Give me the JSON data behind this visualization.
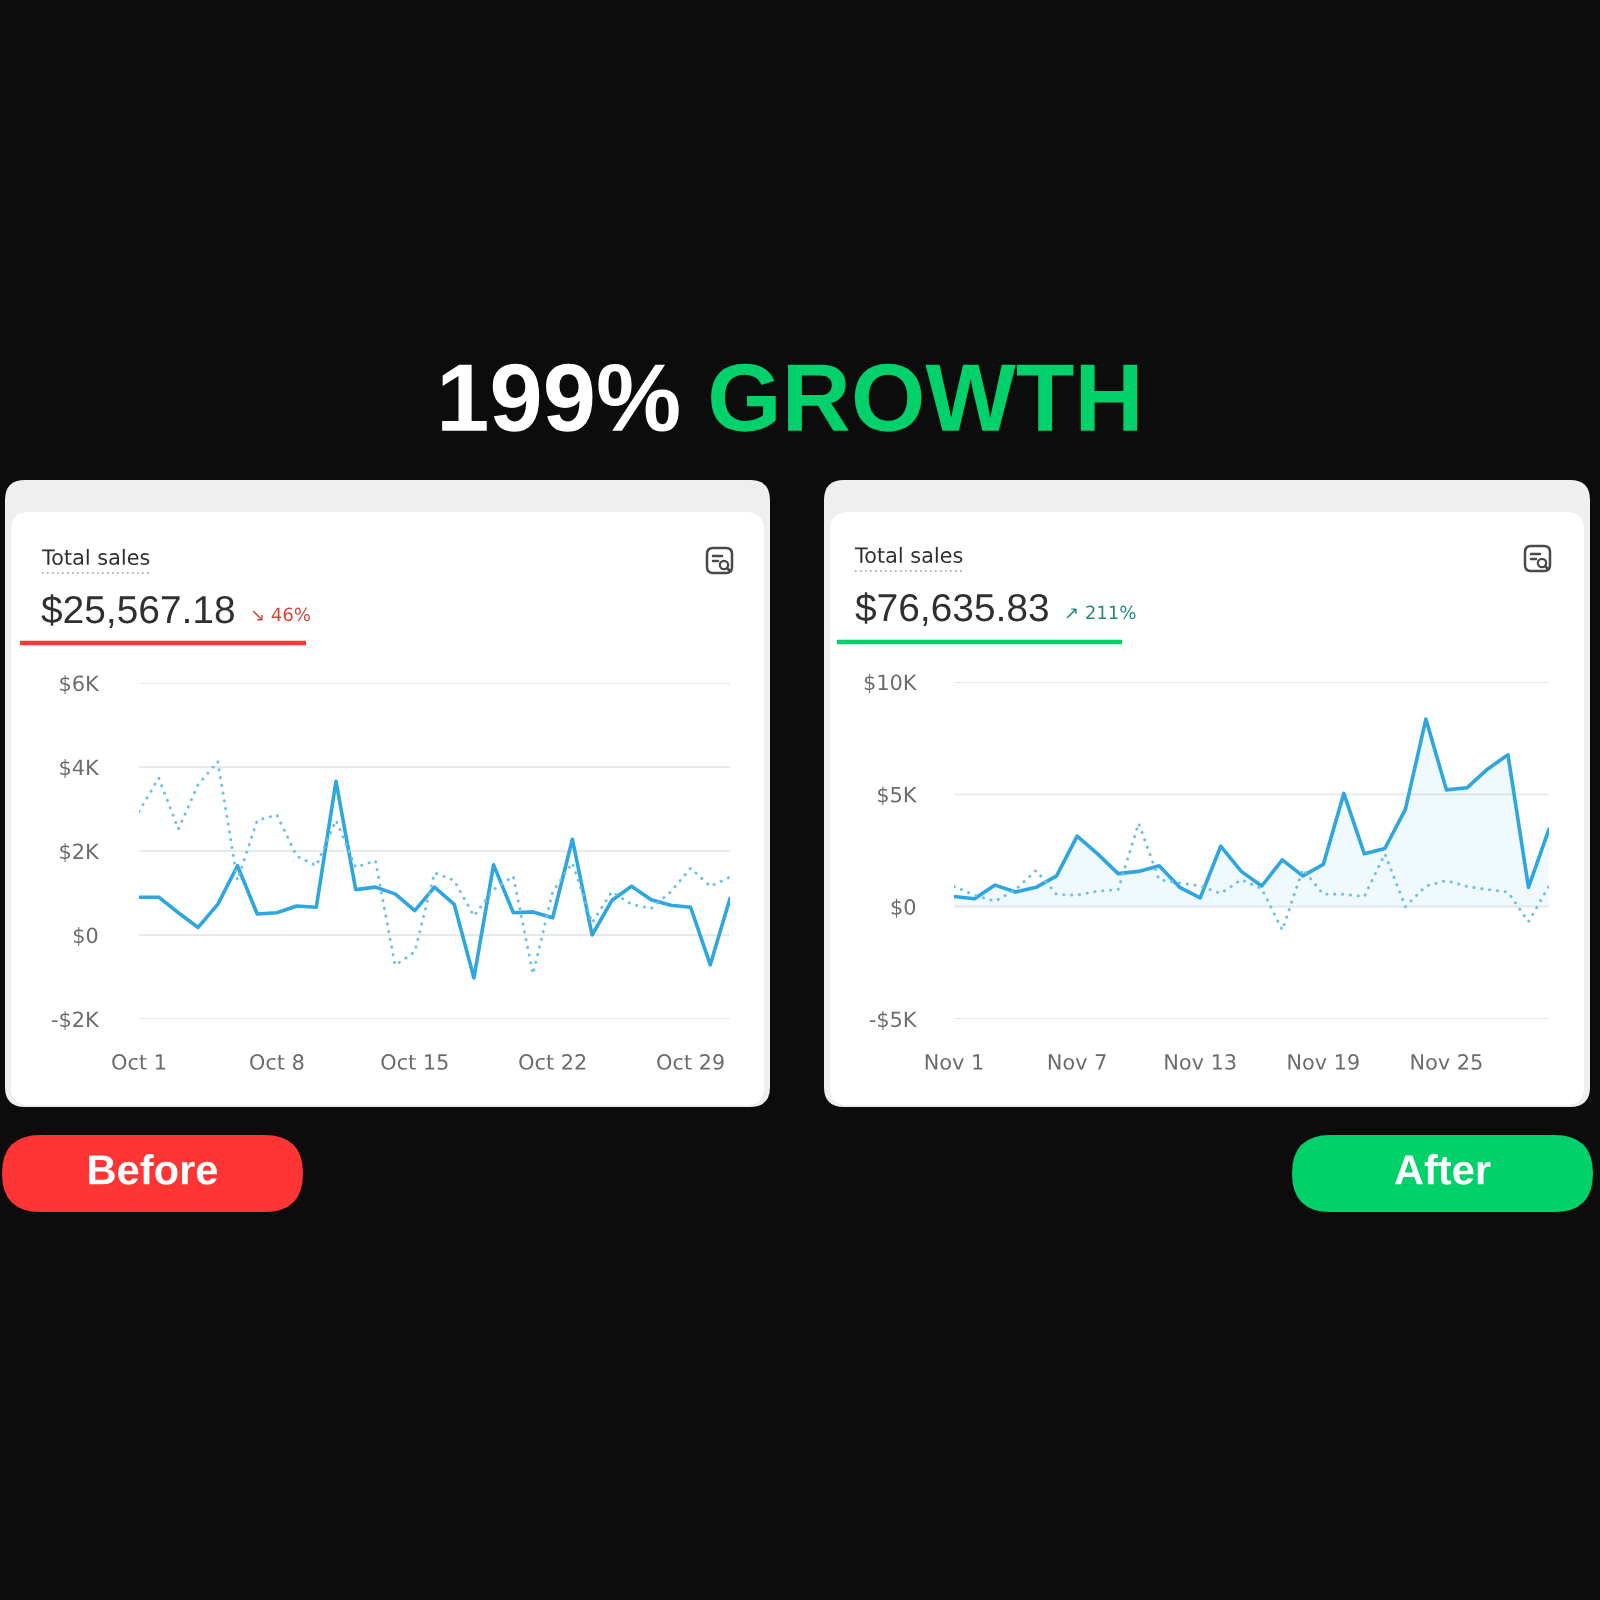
{
  "chart_data": [
    {
      "type": "other",
      "annotations": [
        "199%",
        "GROWTH"
      ]
    },
    {
      "type": "line",
      "title": "Total sales",
      "subtitle": "$25,567.18",
      "annotations": [
        "↘ 46%",
        "Before"
      ],
      "categories": [
        "Oct 1",
        null,
        null,
        null,
        null,
        null,
        null,
        "Oct 8",
        null,
        null,
        null,
        null,
        null,
        null,
        "Oct 15",
        null,
        null,
        null,
        null,
        null,
        null,
        "Oct 22",
        null,
        null,
        null,
        null,
        null,
        null,
        "Oct 29",
        null,
        null
      ],
      "series": [
        {
          "color": "#2ea6df",
          "values": [
            900,
            900,
            530,
            180,
            730,
            1650,
            500,
            530,
            690,
            660,
            3660,
            1080,
            1140,
            980,
            580,
            1140,
            730,
            -1020,
            1670,
            530,
            550,
            410,
            2280,
            0,
            820,
            1160,
            840,
            710,
            660,
            -710,
            870
          ]
        },
        {
          "color": "#6ec1e9",
          "line_style": "dotted",
          "values": [
            2940,
            3740,
            2520,
            3580,
            4130,
            1300,
            2730,
            2860,
            1880,
            1650,
            2730,
            1610,
            1770,
            -720,
            -400,
            1480,
            1300,
            450,
            1080,
            1400,
            -930,
            1030,
            1720,
            290,
            1030,
            730,
            630,
            1030,
            1590,
            1160,
            1380
          ]
        }
      ],
      "ylim": [
        -2000,
        6000
      ],
      "yticks": [
        {
          "value": -2000,
          "label": "-$2K"
        },
        {
          "value": 0,
          "label": "$0"
        },
        {
          "value": 2000,
          "label": "$2K"
        },
        {
          "value": 4000,
          "label": "$4K"
        },
        {
          "value": 6000,
          "label": "$6K"
        }
      ],
      "grid": "y"
    },
    {
      "type": "line",
      "title": "Total sales",
      "subtitle": "$76,635.83",
      "annotations": [
        "↗ 211%",
        "After"
      ],
      "categories": [
        "Nov 1",
        null,
        null,
        null,
        null,
        null,
        "Nov 7",
        null,
        null,
        null,
        null,
        null,
        "Nov 13",
        null,
        null,
        null,
        null,
        null,
        "Nov 19",
        null,
        null,
        null,
        null,
        null,
        "Nov 25",
        null,
        null,
        null,
        null,
        null
      ],
      "series": [
        {
          "type": "area",
          "color": "#2ea6df",
          "values": [
            450,
            350,
            960,
            650,
            860,
            1370,
            3140,
            2350,
            1470,
            1570,
            1820,
            860,
            390,
            2690,
            1570,
            920,
            2080,
            1370,
            1880,
            5040,
            2350,
            2590,
            4330,
            8350,
            5200,
            5290,
            6120,
            6760,
            860,
            3450
          ]
        },
        {
          "color": "#6ec1e9",
          "line_style": "dotted",
          "values": [
            900,
            510,
            240,
            760,
            1610,
            550,
            510,
            690,
            760,
            3710,
            1200,
            1060,
            920,
            590,
            1200,
            800,
            -1040,
            1670,
            550,
            550,
            450,
            2350,
            0,
            920,
            1160,
            900,
            760,
            650,
            -670,
            920
          ]
        }
      ],
      "ylim": [
        -5000,
        10000
      ],
      "yticks": [
        {
          "value": -5000,
          "label": "-$5K"
        },
        {
          "value": 0,
          "label": "$0"
        },
        {
          "value": 5000,
          "label": "$5K"
        },
        {
          "value": 10000,
          "label": "$10K"
        }
      ],
      "grid": "y"
    }
  ]
}
